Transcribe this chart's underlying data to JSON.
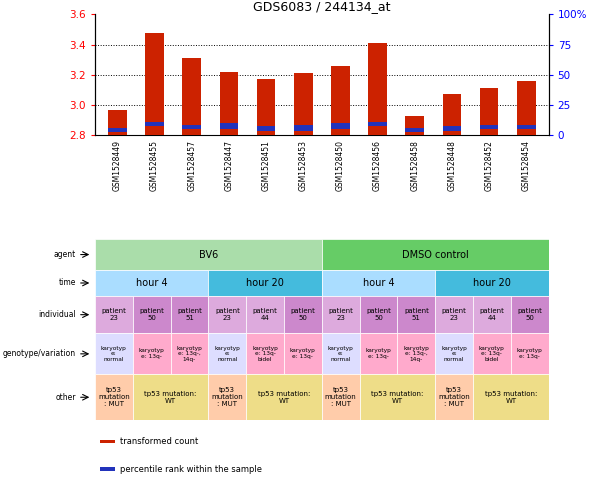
{
  "title": "GDS6083 / 244134_at",
  "samples": [
    "GSM1528449",
    "GSM1528455",
    "GSM1528457",
    "GSM1528447",
    "GSM1528451",
    "GSM1528453",
    "GSM1528450",
    "GSM1528456",
    "GSM1528458",
    "GSM1528448",
    "GSM1528452",
    "GSM1528454"
  ],
  "bar_values": [
    2.97,
    3.48,
    3.31,
    3.22,
    3.17,
    3.21,
    3.26,
    3.41,
    2.93,
    3.07,
    3.11,
    3.16
  ],
  "blue_values": [
    2.82,
    2.86,
    2.84,
    2.84,
    2.83,
    2.83,
    2.84,
    2.86,
    2.82,
    2.83,
    2.84,
    2.84
  ],
  "blue_heights": [
    0.03,
    0.03,
    0.03,
    0.04,
    0.03,
    0.04,
    0.04,
    0.03,
    0.03,
    0.03,
    0.03,
    0.03
  ],
  "bar_bottom": 2.8,
  "ylim_left": [
    2.8,
    3.6
  ],
  "ylim_right": [
    0,
    100
  ],
  "yticks_left": [
    2.8,
    3.0,
    3.2,
    3.4,
    3.6
  ],
  "yticks_right": [
    0,
    25,
    50,
    75,
    100
  ],
  "ytick_labels_right": [
    "0",
    "25",
    "50",
    "75",
    "100%"
  ],
  "bar_color": "#cc2200",
  "blue_color": "#2233bb",
  "agent_row": {
    "label": "agent",
    "groups": [
      {
        "text": "BV6",
        "span": [
          0,
          6
        ],
        "color": "#aaddaa"
      },
      {
        "text": "DMSO control",
        "span": [
          6,
          12
        ],
        "color": "#66cc66"
      }
    ]
  },
  "time_row": {
    "label": "time",
    "groups": [
      {
        "text": "hour 4",
        "span": [
          0,
          3
        ],
        "color": "#aaddff"
      },
      {
        "text": "hour 20",
        "span": [
          3,
          6
        ],
        "color": "#44bbdd"
      },
      {
        "text": "hour 4",
        "span": [
          6,
          9
        ],
        "color": "#aaddff"
      },
      {
        "text": "hour 20",
        "span": [
          9,
          12
        ],
        "color": "#44bbdd"
      }
    ]
  },
  "individual_row": {
    "label": "individual",
    "cells": [
      {
        "text": "patient\n23",
        "color": "#ddaadd"
      },
      {
        "text": "patient\n50",
        "color": "#cc88cc"
      },
      {
        "text": "patient\n51",
        "color": "#cc88cc"
      },
      {
        "text": "patient\n23",
        "color": "#ddaadd"
      },
      {
        "text": "patient\n44",
        "color": "#ddaadd"
      },
      {
        "text": "patient\n50",
        "color": "#cc88cc"
      },
      {
        "text": "patient\n23",
        "color": "#ddaadd"
      },
      {
        "text": "patient\n50",
        "color": "#cc88cc"
      },
      {
        "text": "patient\n51",
        "color": "#cc88cc"
      },
      {
        "text": "patient\n23",
        "color": "#ddaadd"
      },
      {
        "text": "patient\n44",
        "color": "#ddaadd"
      },
      {
        "text": "patient\n50",
        "color": "#cc88cc"
      }
    ]
  },
  "genotype_row": {
    "label": "genotype/variation",
    "cells": [
      {
        "text": "karyotyp\ne:\nnormal",
        "color": "#ddddff"
      },
      {
        "text": "karyotyp\ne: 13q-",
        "color": "#ffaacc"
      },
      {
        "text": "karyotyp\ne: 13q-,\n14q-",
        "color": "#ffaacc"
      },
      {
        "text": "karyotyp\ne:\nnormal",
        "color": "#ddddff"
      },
      {
        "text": "karyotyp\ne: 13q-\nbidel",
        "color": "#ffaacc"
      },
      {
        "text": "karyotyp\ne: 13q-",
        "color": "#ffaacc"
      },
      {
        "text": "karyotyp\ne:\nnormal",
        "color": "#ddddff"
      },
      {
        "text": "karyotyp\ne: 13q-",
        "color": "#ffaacc"
      },
      {
        "text": "karyotyp\ne: 13q-,\n14q-",
        "color": "#ffaacc"
      },
      {
        "text": "karyotyp\ne:\nnormal",
        "color": "#ddddff"
      },
      {
        "text": "karyotyp\ne: 13q-\nbidel",
        "color": "#ffaacc"
      },
      {
        "text": "karyotyp\ne: 13q-",
        "color": "#ffaacc"
      }
    ]
  },
  "other_row": {
    "label": "other",
    "groups": [
      {
        "text": "tp53\nmutation\n: MUT",
        "span": [
          0,
          1
        ],
        "color": "#ffccaa"
      },
      {
        "text": "tp53 mutation:\nWT",
        "span": [
          1,
          3
        ],
        "color": "#eedd88"
      },
      {
        "text": "tp53\nmutation\n: MUT",
        "span": [
          3,
          4
        ],
        "color": "#ffccaa"
      },
      {
        "text": "tp53 mutation:\nWT",
        "span": [
          4,
          6
        ],
        "color": "#eedd88"
      },
      {
        "text": "tp53\nmutation\n: MUT",
        "span": [
          6,
          7
        ],
        "color": "#ffccaa"
      },
      {
        "text": "tp53 mutation:\nWT",
        "span": [
          7,
          9
        ],
        "color": "#eedd88"
      },
      {
        "text": "tp53\nmutation\n: MUT",
        "span": [
          9,
          10
        ],
        "color": "#ffccaa"
      },
      {
        "text": "tp53 mutation:\nWT",
        "span": [
          10,
          12
        ],
        "color": "#eedd88"
      }
    ]
  },
  "legend": [
    {
      "label": "transformed count",
      "color": "#cc2200"
    },
    {
      "label": "percentile rank within the sample",
      "color": "#2233bb"
    }
  ],
  "row_names": [
    "agent",
    "time",
    "individual",
    "genotype/variation",
    "other"
  ]
}
